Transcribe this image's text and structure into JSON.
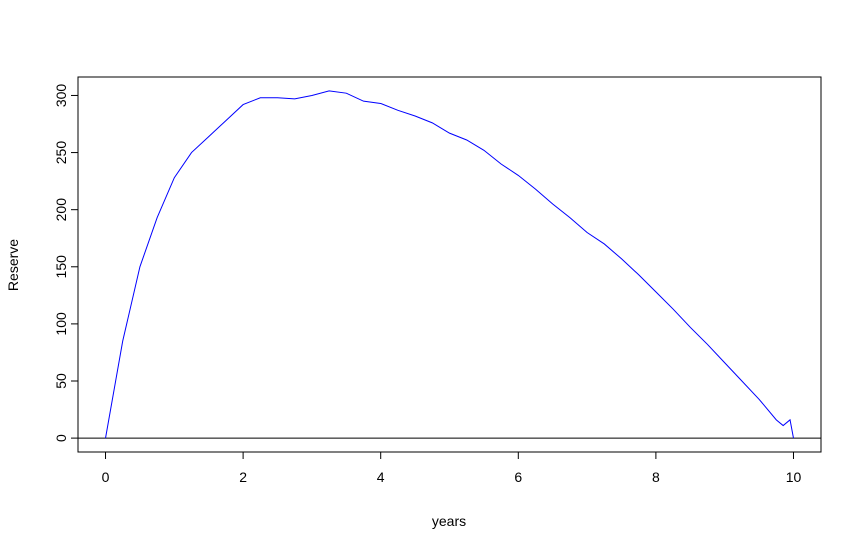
{
  "chart_data": {
    "type": "line",
    "xlabel": "years",
    "ylabel": "Reserve",
    "x": [
      0,
      0.25,
      0.5,
      0.75,
      1,
      1.25,
      1.5,
      1.75,
      2,
      2.25,
      2.5,
      2.75,
      3,
      3.25,
      3.5,
      3.75,
      4,
      4.25,
      4.5,
      4.75,
      5,
      5.25,
      5.5,
      5.75,
      6,
      6.25,
      6.5,
      6.75,
      7,
      7.25,
      7.5,
      7.75,
      8,
      8.25,
      8.5,
      8.75,
      9,
      9.25,
      9.5,
      9.75,
      9.85,
      9.95,
      10
    ],
    "series": [
      {
        "name": "Reserve",
        "color": "#0000ff",
        "values": [
          0,
          85,
          150,
          193,
          228,
          250,
          264,
          278,
          292,
          298,
          298,
          297,
          300,
          304,
          302,
          295,
          293,
          287,
          282,
          276,
          267,
          261,
          252,
          240,
          230,
          218,
          205,
          193,
          180,
          170,
          157,
          143,
          128,
          113,
          97,
          82,
          66,
          50,
          34,
          16,
          11,
          16,
          0
        ]
      }
    ],
    "hline": 0,
    "xlim": [
      -0.4,
      10.4
    ],
    "ylim": [
      -12.16,
      316.16
    ],
    "xticks": [
      0,
      2,
      4,
      6,
      8,
      10
    ],
    "yticks": [
      0,
      50,
      100,
      150,
      200,
      250,
      300
    ]
  }
}
